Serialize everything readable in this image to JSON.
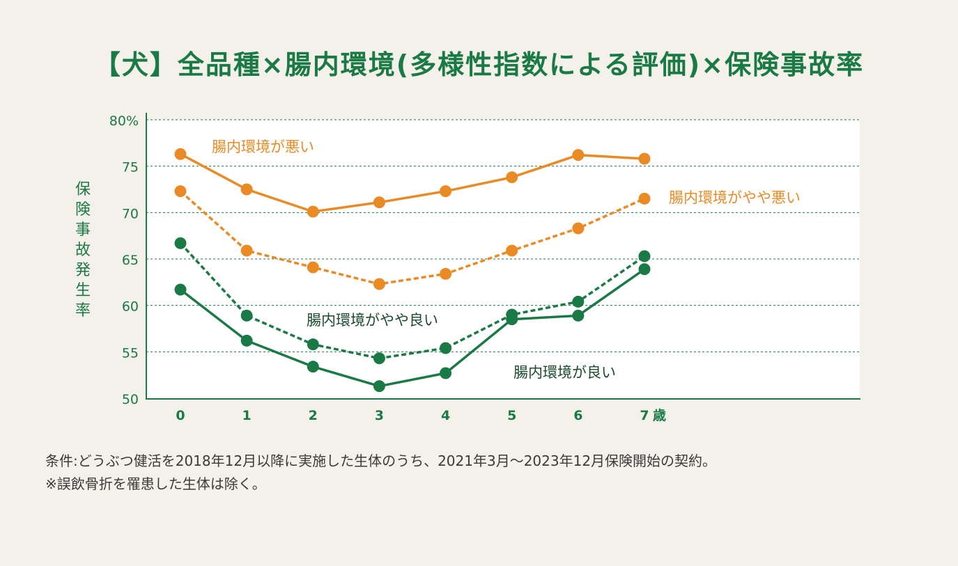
{
  "title": "【犬】全品種×腸内環境(多様性指数による評価)×保険事故率",
  "notes": {
    "line1": "条件:どうぶつ健活を2018年12月以降に実施した生体のうち、2021年3月〜2023年12月保険開始の契約。",
    "line2": "※誤飲骨折を罹患した生体は除く。"
  },
  "chart_data": {
    "type": "line",
    "x": [
      0,
      1,
      2,
      3,
      4,
      5,
      6,
      7
    ],
    "x_tick_labels": [
      "0",
      "1",
      "2",
      "3",
      "4",
      "5",
      "6",
      "7"
    ],
    "x_unit": "歳",
    "ylabel": "保険事故発生率",
    "ylim": [
      50,
      80
    ],
    "y_ticks": [
      50,
      55,
      60,
      65,
      70,
      75,
      80
    ],
    "y_tick_labels": [
      "50",
      "55",
      "60",
      "65",
      "70",
      "75",
      "80%"
    ],
    "grid": true,
    "series": [
      {
        "name": "腸内環境が悪い",
        "color": "#ea8a25",
        "style": "solid",
        "values": [
          76.3,
          72.5,
          70.1,
          71.1,
          72.3,
          73.8,
          76.2,
          75.8
        ]
      },
      {
        "name": "腸内環境がやや悪い",
        "color": "#ea8a25",
        "style": "dashed",
        "values": [
          72.3,
          65.9,
          64.1,
          62.3,
          63.4,
          65.9,
          68.3,
          71.5
        ]
      },
      {
        "name": "腸内環境がやや良い",
        "color": "#1a7a45",
        "style": "dashed",
        "values": [
          66.7,
          58.9,
          55.8,
          54.3,
          55.4,
          59.0,
          60.4,
          65.3
        ]
      },
      {
        "name": "腸内環境が良い",
        "color": "#1a7a45",
        "style": "solid",
        "values": [
          61.7,
          56.2,
          53.4,
          51.3,
          52.7,
          58.5,
          58.9,
          63.9
        ]
      }
    ]
  }
}
